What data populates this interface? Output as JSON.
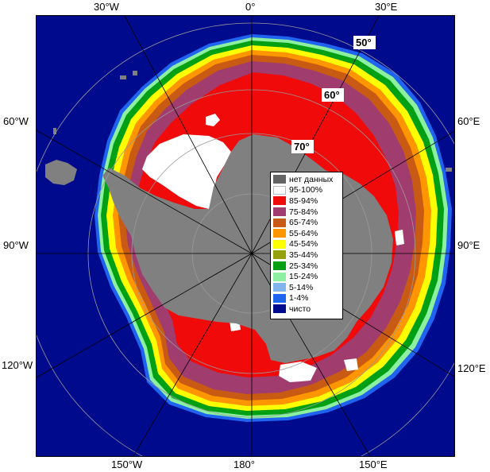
{
  "lon_labels": {
    "top": [
      "30°W",
      "0°",
      "30°E"
    ],
    "left": [
      "60°W",
      "90°W",
      "120°W"
    ],
    "right": [
      "60°E",
      "90°E",
      "120°E"
    ],
    "bottom": [
      "150°W",
      "180°",
      "150°E"
    ]
  },
  "lat_labels": [
    "50°",
    "60°",
    "70°"
  ],
  "legend": [
    {
      "label": "нет данных",
      "color": "#646464"
    },
    {
      "label": "95-100%",
      "color": "#ffffff"
    },
    {
      "label": "85-94%",
      "color": "#f00a0a"
    },
    {
      "label": "75-84%",
      "color": "#a03c6e"
    },
    {
      "label": "65-74%",
      "color": "#c85a14"
    },
    {
      "label": "55-64%",
      "color": "#ff9600"
    },
    {
      "label": "45-54%",
      "color": "#ffff00"
    },
    {
      "label": "35-44%",
      "color": "#96a000"
    },
    {
      "label": "25-34%",
      "color": "#00a014"
    },
    {
      "label": "15-24%",
      "color": "#8cf0a0"
    },
    {
      "label": "5-14%",
      "color": "#82b4f0"
    },
    {
      "label": "1-4%",
      "color": "#1e64f0"
    },
    {
      "label": "чисто",
      "color": "#000a8c"
    }
  ],
  "colors": {
    "ocean": "#000a8c",
    "land": "#808080",
    "nodata": "#646464",
    "grid": "#9a9a9a"
  }
}
